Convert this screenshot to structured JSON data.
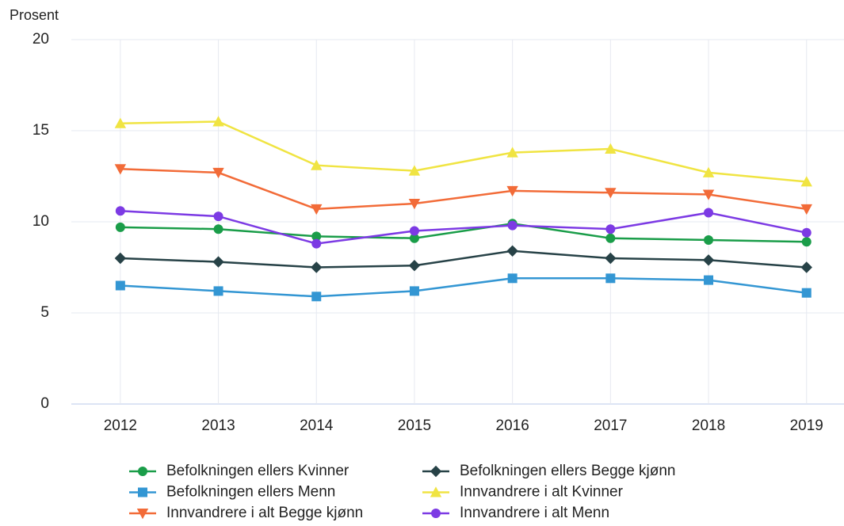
{
  "chart_data": {
    "type": "line",
    "y_label": "Prosent",
    "categories": [
      "2012",
      "2013",
      "2014",
      "2015",
      "2016",
      "2017",
      "2018",
      "2019"
    ],
    "series": [
      {
        "name": "Befolkningen ellers Kvinner",
        "color": "#1a9d49",
        "marker": "circle",
        "values": [
          9.7,
          9.6,
          9.2,
          9.1,
          9.9,
          9.1,
          9.0,
          8.9
        ]
      },
      {
        "name": "Befolkningen ellers Begge kjønn",
        "color": "#274247",
        "marker": "diamond",
        "values": [
          8.0,
          7.8,
          7.5,
          7.6,
          8.4,
          8.0,
          7.9,
          7.5
        ]
      },
      {
        "name": "Befolkningen ellers Menn",
        "color": "#3396d3",
        "marker": "square",
        "values": [
          6.5,
          6.2,
          5.9,
          6.2,
          6.9,
          6.9,
          6.8,
          6.1
        ]
      },
      {
        "name": "Innvandrere i alt Kvinner",
        "color": "#f0e442",
        "marker": "triangle-up",
        "values": [
          15.4,
          15.5,
          13.1,
          12.8,
          13.8,
          14.0,
          12.7,
          12.2
        ]
      },
      {
        "name": "Innvandrere i alt Begge kjønn",
        "color": "#f26b38",
        "marker": "triangle-down",
        "values": [
          12.9,
          12.7,
          10.7,
          11.0,
          11.7,
          11.6,
          11.5,
          10.7
        ]
      },
      {
        "name": "Innvandrere i alt Menn",
        "color": "#7c3ae4",
        "marker": "circle",
        "values": [
          10.6,
          10.3,
          8.8,
          9.5,
          9.8,
          9.6,
          10.5,
          9.4
        ]
      }
    ],
    "ylim": [
      0,
      20
    ],
    "yticks": [
      0,
      5,
      10,
      15,
      20
    ],
    "grid": true
  }
}
